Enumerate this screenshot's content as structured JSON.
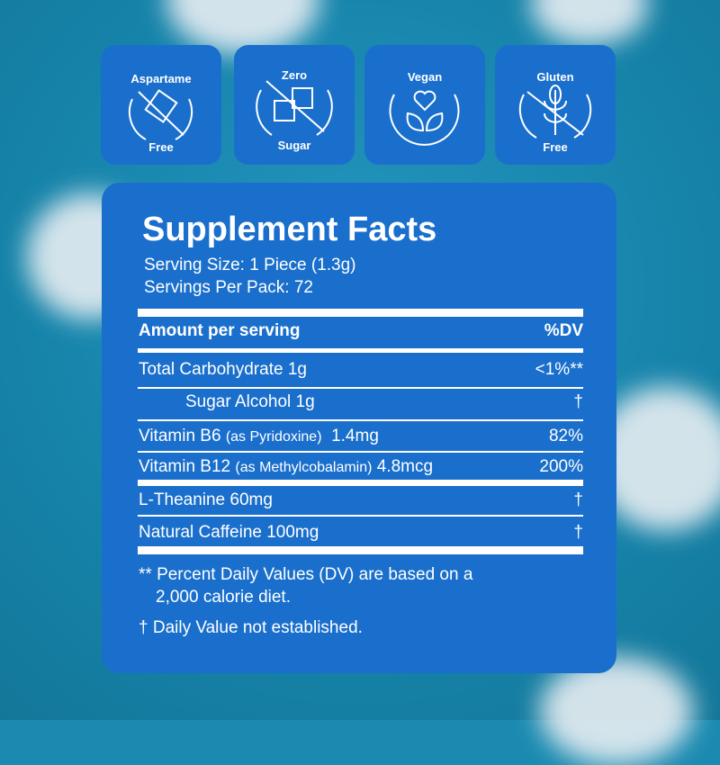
{
  "badges": [
    {
      "top": "Aspartame",
      "bottom": "Free",
      "icon": "crossed-candy-icon"
    },
    {
      "top": "Zero",
      "bottom": "Sugar",
      "icon": "crossed-sugar-cubes-icon"
    },
    {
      "top": "Vegan",
      "bottom": "",
      "icon": "heart-leaves-icon"
    },
    {
      "top": "Gluten",
      "bottom": "Free",
      "icon": "crossed-wheat-icon"
    }
  ],
  "facts": {
    "title": "Supplement Facts",
    "serving_size": "Serving Size: 1 Piece (1.3g)",
    "servings_per_pack": "Servings Per Pack: 72",
    "header_amount": "Amount per serving",
    "header_dv": "%DV",
    "rows": [
      {
        "name": "Total Carbohydrate  1g",
        "note": "",
        "amount": "",
        "dv": "<1%**"
      },
      {
        "name": "Sugar Alcohol  1g",
        "note": "",
        "amount": "",
        "dv": "†"
      },
      {
        "name": "Vitamin B6",
        "note": "(as Pyridoxine)",
        "amount": "1.4mg",
        "dv": "82%"
      },
      {
        "name": "Vitamin B12",
        "note": "(as Methylcobalamin)",
        "amount": "4.8mcg",
        "dv": "200%"
      },
      {
        "name": "L-Theanine  60mg",
        "note": "",
        "amount": "",
        "dv": "†"
      },
      {
        "name": "Natural Caffeine  100mg",
        "note": "",
        "amount": "",
        "dv": "†"
      }
    ],
    "footnote_1a": "** Percent Daily Values (DV) are based on a",
    "footnote_1b": "2,000 calorie diet.",
    "footnote_2": "† Daily Value not established."
  },
  "colors": {
    "background": "#1b8ab0",
    "panel": "#1a6fcc",
    "text": "#ffffff"
  }
}
